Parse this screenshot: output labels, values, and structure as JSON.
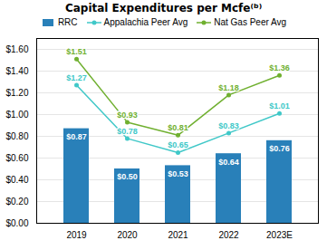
{
  "chart_data": {
    "type": "bar",
    "title": "Capital Expenditures per Mcfe⁽ᵇ⁾",
    "categories": [
      "2019",
      "2020",
      "2021",
      "2022",
      "2023E"
    ],
    "series": [
      {
        "name": "RRC",
        "type": "bar",
        "color": "#2980B9",
        "values": [
          0.87,
          0.5,
          0.53,
          0.64,
          0.76
        ],
        "value_labels": [
          "$0.87",
          "$0.50",
          "$0.53",
          "$0.64",
          "$0.76"
        ]
      },
      {
        "name": "Appalachia Peer Avg",
        "type": "line",
        "color": "#40C8C8",
        "marker": "circle",
        "values": [
          1.27,
          0.78,
          0.65,
          0.83,
          1.01
        ],
        "value_labels": [
          "$1.27",
          "$0.78",
          "$0.65",
          "$0.83",
          "$1.01"
        ]
      },
      {
        "name": "Nat Gas Peer Avg",
        "type": "line",
        "color": "#70B030",
        "marker": "circle",
        "values": [
          1.51,
          0.93,
          0.81,
          1.18,
          1.36
        ],
        "value_labels": [
          "$1.51",
          "$0.93",
          "$0.81",
          "$1.18",
          "$1.36"
        ]
      }
    ],
    "ylim": [
      0,
      1.7
    ],
    "yticks": [
      {
        "value": 0.0,
        "label": "$0.00"
      },
      {
        "value": 0.2,
        "label": "$0.20"
      },
      {
        "value": 0.4,
        "label": "$0.40"
      },
      {
        "value": 0.6,
        "label": "$0.60"
      },
      {
        "value": 0.8,
        "label": "$0.80"
      },
      {
        "value": 1.0,
        "label": "$1.00"
      },
      {
        "value": 1.2,
        "label": "$1.20"
      },
      {
        "value": 1.4,
        "label": "$1.40"
      },
      {
        "value": 1.6,
        "label": "$1.60"
      }
    ],
    "grid": true,
    "legend": "top",
    "data_labels": true
  }
}
